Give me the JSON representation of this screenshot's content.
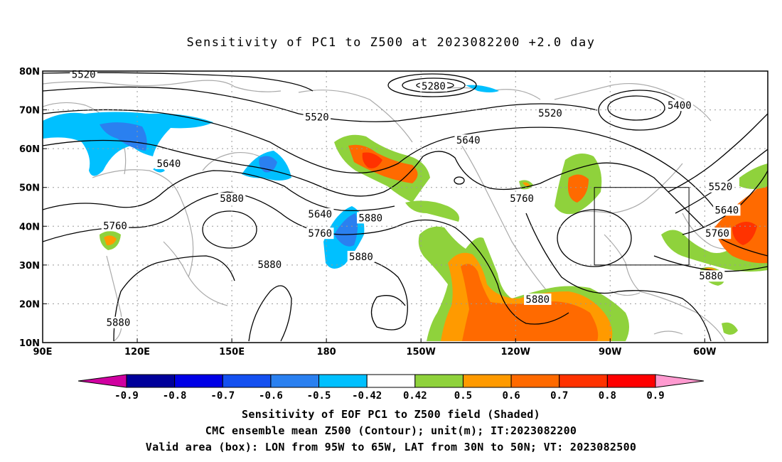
{
  "title": "Sensitivity of PC1 to Z500 at 2023082200 +2.0 day",
  "captions": [
    "Sensitivity of EOF PC1 to Z500 field (Shaded)",
    "CMC ensemble mean Z500 (Contour); unit(m); IT:2023082200",
    "Valid area (box): LON from 95W to 65W, LAT from 30N to 50N; VT: 2023082500"
  ],
  "axes": {
    "lat_labels": [
      "80N",
      "70N",
      "60N",
      "50N",
      "40N",
      "30N",
      "20N",
      "10N"
    ],
    "lon_labels": [
      "90E",
      "120E",
      "150E",
      "180",
      "150W",
      "120W",
      "90W",
      "60W"
    ],
    "lon_range": [
      90,
      320
    ],
    "lat_range": [
      10,
      80
    ]
  },
  "valid_box": {
    "lon_w": -95,
    "lon_e": -65,
    "lat_s": 30,
    "lat_n": 50
  },
  "contour_labels": [
    {
      "text": "5520",
      "lon": 103,
      "lat": 79
    },
    {
      "text": "5280",
      "lon": 214,
      "lat": 76
    },
    {
      "text": "5400",
      "lon": 292,
      "lat": 71
    },
    {
      "text": "5520",
      "lon": 177,
      "lat": 68
    },
    {
      "text": "5520",
      "lon": 251,
      "lat": 69
    },
    {
      "text": "5640",
      "lon": 225,
      "lat": 62
    },
    {
      "text": "5640",
      "lon": 130,
      "lat": 56
    },
    {
      "text": "5520",
      "lon": 305,
      "lat": 50
    },
    {
      "text": "5880",
      "lon": 150,
      "lat": 47
    },
    {
      "text": "5760",
      "lon": 242,
      "lat": 47
    },
    {
      "text": "5640",
      "lon": 307,
      "lat": 44
    },
    {
      "text": "5640",
      "lon": 178,
      "lat": 43
    },
    {
      "text": "5880",
      "lon": 194,
      "lat": 42
    },
    {
      "text": "5760",
      "lon": 178,
      "lat": 38
    },
    {
      "text": "5760",
      "lon": 113,
      "lat": 40
    },
    {
      "text": "5760",
      "lon": 304,
      "lat": 38
    },
    {
      "text": "5880",
      "lon": 191,
      "lat": 32
    },
    {
      "text": "5880",
      "lon": 162,
      "lat": 30
    },
    {
      "text": "5880",
      "lon": 302,
      "lat": 27
    },
    {
      "text": "5880",
      "lon": 247,
      "lat": 21
    },
    {
      "text": "5880",
      "lon": 114,
      "lat": 15
    }
  ],
  "colorbar": {
    "labels": [
      "-0.9",
      "-0.8",
      "-0.7",
      "-0.6",
      "-0.5",
      "-0.42",
      "0.42",
      "0.5",
      "0.6",
      "0.7",
      "0.8",
      "0.9"
    ],
    "colors": [
      "#d000a0",
      "#00009a",
      "#0000e6",
      "#1450f0",
      "#2a80f0",
      "#00c0ff",
      "#ffffff",
      "#8fd23c",
      "#ff9a00",
      "#ff6a00",
      "#ff3200",
      "#ff0000",
      "#ff9ad0"
    ]
  },
  "shading_colors": {
    "cyan": "#00c0ff",
    "blue": "#2a80f0",
    "green": "#8fd23c",
    "orange": "#ff9a00",
    "darkorange": "#ff6a00",
    "red": "#ff3200"
  }
}
